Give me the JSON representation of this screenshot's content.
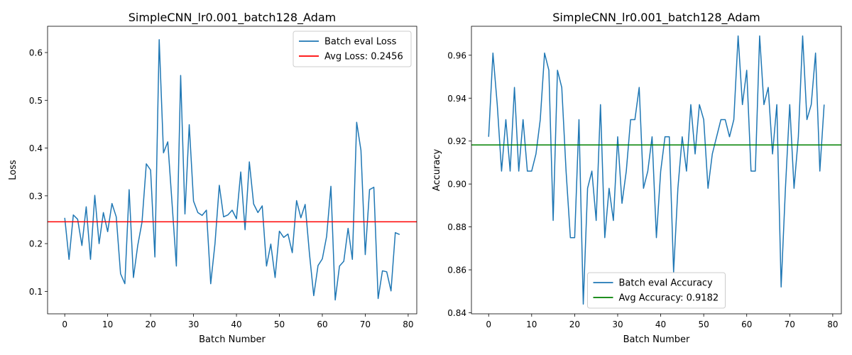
{
  "chart_data": [
    {
      "type": "line",
      "title": "SimpleCNN_lr0.001_batch128_Adam",
      "xlabel": "Batch Number",
      "ylabel": "Loss",
      "xlim": [
        -4,
        82
      ],
      "ylim": [
        0.053,
        0.655
      ],
      "xticks": [
        0,
        10,
        20,
        30,
        40,
        50,
        60,
        70,
        80
      ],
      "yticks": [
        0.1,
        0.2,
        0.3,
        0.4,
        0.5,
        0.6
      ],
      "ytick_labels": [
        "0.1",
        "0.2",
        "0.3",
        "0.4",
        "0.5",
        "0.6"
      ],
      "legend_position": "upper right",
      "series": [
        {
          "name": "Batch eval Loss",
          "color": "#1f77b4",
          "values": [
            0.254,
            0.167,
            0.26,
            0.251,
            0.196,
            0.277,
            0.167,
            0.301,
            0.2,
            0.265,
            0.225,
            0.284,
            0.256,
            0.137,
            0.116,
            0.313,
            0.129,
            0.196,
            0.245,
            0.367,
            0.354,
            0.172,
            0.627,
            0.39,
            0.413,
            0.284,
            0.153,
            0.552,
            0.262,
            0.449,
            0.289,
            0.265,
            0.259,
            0.27,
            0.116,
            0.2,
            0.322,
            0.256,
            0.26,
            0.27,
            0.252,
            0.35,
            0.229,
            0.371,
            0.283,
            0.265,
            0.279,
            0.153,
            0.199,
            0.129,
            0.226,
            0.213,
            0.22,
            0.181,
            0.29,
            0.254,
            0.282,
            0.179,
            0.091,
            0.154,
            0.168,
            0.215,
            0.32,
            0.082,
            0.153,
            0.163,
            0.232,
            0.167,
            0.454,
            0.395,
            0.177,
            0.313,
            0.318,
            0.085,
            0.143,
            0.141,
            0.101,
            0.223,
            0.219
          ]
        }
      ],
      "hlines": [
        {
          "name": "Avg Loss: 0.2456",
          "value": 0.2456,
          "color": "#ff0000"
        }
      ]
    },
    {
      "type": "line",
      "title": "SimpleCNN_lr0.001_batch128_Adam",
      "xlabel": "Batch Number",
      "ylabel": "Accuracy",
      "xlim": [
        -4,
        82
      ],
      "ylim": [
        0.8395,
        0.9735
      ],
      "xticks": [
        0,
        10,
        20,
        30,
        40,
        50,
        60,
        70,
        80
      ],
      "yticks": [
        0.84,
        0.86,
        0.88,
        0.9,
        0.92,
        0.94,
        0.96
      ],
      "ytick_labels": [
        "0.84",
        "0.86",
        "0.88",
        "0.90",
        "0.92",
        "0.94",
        "0.96"
      ],
      "legend_position": "lower center",
      "series": [
        {
          "name": "Batch eval Accuracy",
          "color": "#1f77b4",
          "values": [
            0.922,
            0.961,
            0.937,
            0.906,
            0.93,
            0.906,
            0.945,
            0.906,
            0.93,
            0.906,
            0.906,
            0.914,
            0.93,
            0.961,
            0.953,
            0.883,
            0.953,
            0.945,
            0.906,
            0.875,
            0.875,
            0.93,
            0.844,
            0.898,
            0.906,
            0.883,
            0.937,
            0.875,
            0.898,
            0.883,
            0.922,
            0.891,
            0.906,
            0.93,
            0.93,
            0.945,
            0.898,
            0.906,
            0.922,
            0.875,
            0.906,
            0.922,
            0.922,
            0.859,
            0.898,
            0.922,
            0.906,
            0.937,
            0.914,
            0.937,
            0.93,
            0.898,
            0.914,
            0.922,
            0.93,
            0.93,
            0.922,
            0.93,
            0.969,
            0.937,
            0.953,
            0.906,
            0.906,
            0.969,
            0.937,
            0.945,
            0.914,
            0.937,
            0.852,
            0.898,
            0.937,
            0.898,
            0.922,
            0.969,
            0.93,
            0.937,
            0.961,
            0.906,
            0.937
          ]
        }
      ],
      "hlines": [
        {
          "name": "Avg Accuracy: 0.9182",
          "value": 0.9182,
          "color": "#008000"
        }
      ]
    }
  ]
}
